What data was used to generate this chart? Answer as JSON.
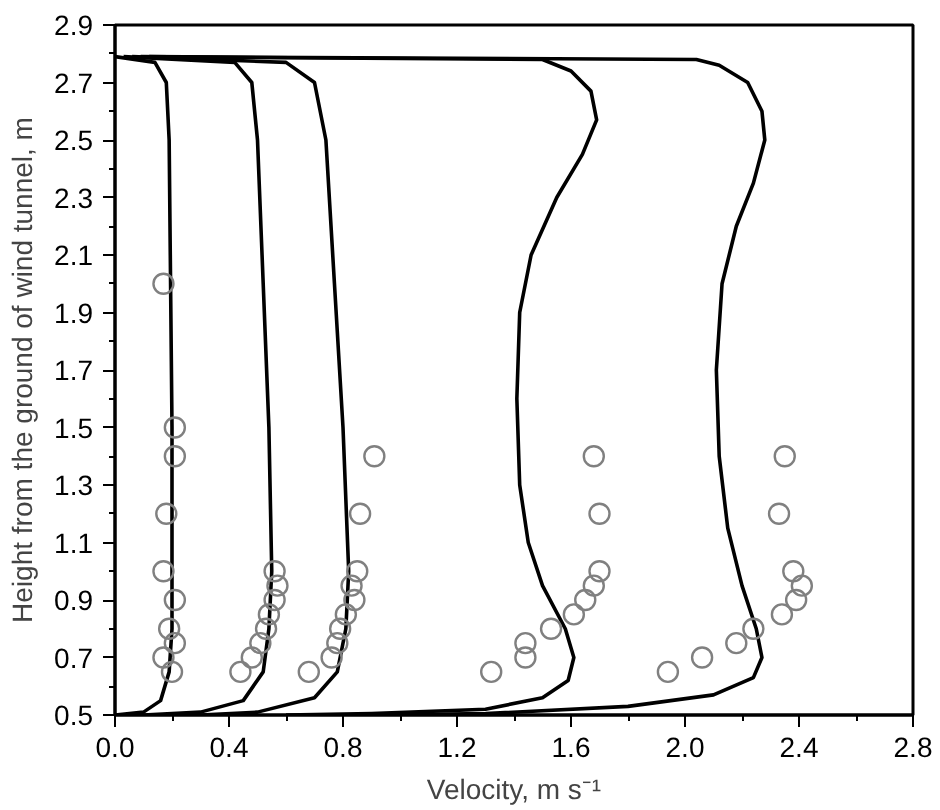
{
  "chart_data": {
    "type": "line",
    "xlabel": "Velocity, m s⁻¹",
    "ylabel": "Height from the ground of wind tunnel, m",
    "xlim": [
      0.0,
      2.8
    ],
    "ylim": [
      0.5,
      2.9
    ],
    "xticks": [
      {
        "value": 0.0,
        "label": "0.0"
      },
      {
        "value": 0.2,
        "label": null
      },
      {
        "value": 0.4,
        "label": "0.4"
      },
      {
        "value": 0.6,
        "label": null
      },
      {
        "value": 0.8,
        "label": "0.8"
      },
      {
        "value": 1.0,
        "label": null
      },
      {
        "value": 1.2,
        "label": "1.2"
      },
      {
        "value": 1.4,
        "label": null
      },
      {
        "value": 1.6,
        "label": "1.6"
      },
      {
        "value": 1.8,
        "label": null
      },
      {
        "value": 2.0,
        "label": "2.0"
      },
      {
        "value": 2.2,
        "label": null
      },
      {
        "value": 2.4,
        "label": "2.4"
      },
      {
        "value": 2.6,
        "label": null
      },
      {
        "value": 2.8,
        "label": "2.8"
      }
    ],
    "yticks": [
      0.5,
      {
        "value": 0.6,
        "label": null
      },
      0.7,
      {
        "value": 0.8,
        "label": null
      },
      0.9,
      {
        "value": 1.0,
        "label": null
      },
      1.1,
      {
        "value": 1.2,
        "label": null
      },
      1.3,
      {
        "value": 1.4,
        "label": null
      },
      1.5,
      {
        "value": 1.6,
        "label": null
      },
      1.7,
      {
        "value": 1.8,
        "label": null
      },
      1.9,
      {
        "value": 2.0,
        "label": null
      },
      2.1,
      {
        "value": 2.2,
        "label": null
      },
      2.3,
      {
        "value": 2.4,
        "label": null
      },
      2.5,
      {
        "value": 2.6,
        "label": null
      },
      2.7,
      {
        "value": 2.8,
        "label": null
      },
      2.9
    ],
    "series": [
      {
        "marker": "none",
        "color": "#000000",
        "x": [
          0,
          0.1,
          0.16,
          0.19,
          0.2,
          0.2,
          0.19,
          0.18,
          0.14,
          0
        ],
        "values": [
          0.5,
          0.51,
          0.55,
          0.65,
          0.8,
          1.5,
          2.5,
          2.7,
          2.77,
          2.79
        ]
      },
      {
        "marker": "none",
        "color": "#000000",
        "x": [
          0.1,
          0.3,
          0.45,
          0.52,
          0.54,
          0.55,
          0.54,
          0.52,
          0.5,
          0.48,
          0.42,
          0.03
        ],
        "values": [
          0.5,
          0.51,
          0.55,
          0.65,
          0.8,
          1.0,
          1.5,
          2.0,
          2.5,
          2.7,
          2.77,
          2.79
        ]
      },
      {
        "marker": "none",
        "color": "#000000",
        "x": [
          0.3,
          0.5,
          0.7,
          0.78,
          0.81,
          0.82,
          0.8,
          0.77,
          0.74,
          0.7,
          0.6,
          0.06
        ],
        "values": [
          0.5,
          0.51,
          0.56,
          0.65,
          0.8,
          1.0,
          1.5,
          2.0,
          2.5,
          2.7,
          2.77,
          2.79
        ]
      },
      {
        "marker": "none",
        "color": "#000000",
        "x": [
          0.6,
          0.9,
          1.3,
          1.5,
          1.59,
          1.61,
          1.58,
          1.5,
          1.45,
          1.42,
          1.41,
          1.42,
          1.46,
          1.55,
          1.64,
          1.69,
          1.67,
          1.6,
          1.5,
          0.09
        ],
        "values": [
          0.5,
          0.505,
          0.52,
          0.56,
          0.62,
          0.7,
          0.8,
          0.95,
          1.1,
          1.3,
          1.6,
          1.9,
          2.1,
          2.3,
          2.45,
          2.57,
          2.67,
          2.74,
          2.78,
          2.79
        ]
      },
      {
        "marker": "none",
        "color": "#000000",
        "x": [
          0.9,
          1.3,
          1.8,
          2.1,
          2.24,
          2.27,
          2.25,
          2.2,
          2.15,
          2.12,
          2.11,
          2.13,
          2.18,
          2.24,
          2.28,
          2.27,
          2.22,
          2.12,
          2.04,
          0.12
        ],
        "values": [
          0.5,
          0.505,
          0.53,
          0.57,
          0.63,
          0.7,
          0.8,
          0.95,
          1.15,
          1.4,
          1.7,
          2.0,
          2.2,
          2.35,
          2.5,
          2.6,
          2.7,
          2.76,
          2.78,
          2.79
        ]
      },
      {
        "type": "scatter",
        "marker": "circle",
        "color": "#808080",
        "x": [
          0.17,
          0.21,
          0.21,
          0.18,
          0.17,
          0.21,
          0.19,
          0.21,
          0.17,
          0.2
        ],
        "values": [
          2.0,
          1.5,
          1.4,
          1.2,
          1.0,
          0.9,
          0.8,
          0.75,
          0.7,
          0.65
        ]
      },
      {
        "type": "scatter",
        "marker": "circle",
        "color": "#808080",
        "x": [
          0.44,
          0.48,
          0.51,
          0.53,
          0.54,
          0.56,
          0.57,
          0.56
        ],
        "values": [
          0.65,
          0.7,
          0.75,
          0.8,
          0.85,
          0.9,
          0.95,
          1.0
        ]
      },
      {
        "type": "scatter",
        "marker": "circle",
        "color": "#808080",
        "x": [
          0.68,
          0.76,
          0.78,
          0.79,
          0.81,
          0.84,
          0.83,
          0.85,
          0.86,
          0.91
        ],
        "values": [
          0.65,
          0.7,
          0.75,
          0.8,
          0.85,
          0.9,
          0.95,
          1.0,
          1.2,
          1.4
        ]
      },
      {
        "type": "scatter",
        "marker": "circle",
        "color": "#808080",
        "x": [
          1.32,
          1.44,
          1.44,
          1.53,
          1.61,
          1.65,
          1.68,
          1.7,
          1.7,
          1.68
        ],
        "values": [
          0.65,
          0.7,
          0.75,
          0.8,
          0.85,
          0.9,
          0.95,
          1.0,
          1.2,
          1.4
        ]
      },
      {
        "type": "scatter",
        "marker": "circle",
        "color": "#808080",
        "x": [
          1.94,
          2.06,
          2.18,
          2.24,
          2.34,
          2.39,
          2.41,
          2.38,
          2.33,
          2.35
        ],
        "values": [
          0.65,
          0.7,
          0.75,
          0.8,
          0.85,
          0.9,
          0.95,
          1.0,
          1.2,
          1.4
        ]
      }
    ]
  }
}
